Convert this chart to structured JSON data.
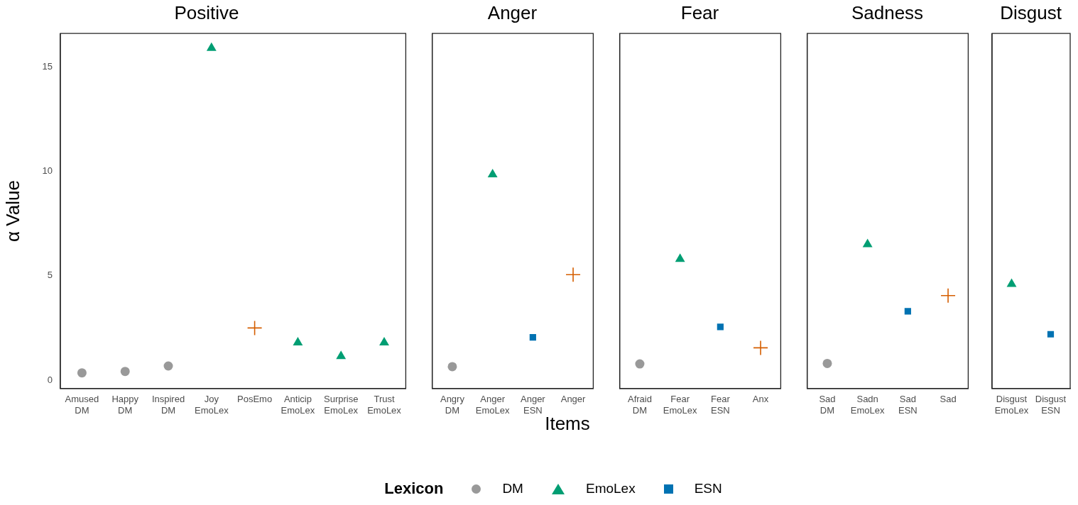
{
  "chart_data": [
    {
      "type": "scatter",
      "title": "Positive",
      "ylabel": "α Value",
      "ylim": [
        -0.4,
        16.6
      ],
      "yticks": [
        0,
        5,
        10,
        15
      ],
      "grid": false,
      "legend": "bottom",
      "legend_title": "Lexicon",
      "categories": [
        "Amused DM",
        "Happy DM",
        "Inspired DM",
        "Joy EmoLex",
        "PosEmo",
        "Anticip EmoLex",
        "Surprise EmoLex",
        "Trust EmoLex"
      ],
      "series": [
        {
          "name": "DM",
          "color": "#999999",
          "marker": "circle",
          "values": [
            0.35,
            0.42,
            0.68,
            null,
            null,
            null,
            null,
            null
          ]
        },
        {
          "name": "EmoLex",
          "color": "#009e73",
          "marker": "triangle",
          "values": [
            null,
            null,
            null,
            15.9,
            null,
            1.8,
            1.15,
            1.8
          ]
        },
        {
          "color": "#d55e00",
          "marker": "cross",
          "values": [
            null,
            null,
            null,
            null,
            2.5,
            null,
            null,
            null
          ]
        }
      ]
    },
    {
      "type": "scatter",
      "title": "Anger",
      "xlabel": "Items",
      "ylim": [
        -0.4,
        16.6
      ],
      "yticks": [
        0,
        5,
        10,
        15
      ],
      "grid": false,
      "tick_labels": "x",
      "categories": [
        "Angry DM",
        "Anger EmoLex",
        "Anger ESN",
        "Anger"
      ],
      "series": [
        {
          "name": "DM",
          "color": "#999999",
          "marker": "circle",
          "values": [
            0.65,
            null,
            null,
            null
          ]
        },
        {
          "name": "EmoLex",
          "color": "#009e73",
          "marker": "triangle",
          "values": [
            null,
            9.85,
            null,
            null
          ]
        },
        {
          "name": "ESN",
          "color": "#0072b2",
          "marker": "square",
          "values": [
            null,
            null,
            2.05,
            null
          ]
        },
        {
          "color": "#d55e00",
          "marker": "cross",
          "values": [
            null,
            null,
            null,
            5.05
          ]
        }
      ]
    },
    {
      "type": "scatter",
      "title": "Fear",
      "ylim": [
        -0.4,
        16.6
      ],
      "yticks": [
        0,
        5,
        10,
        15
      ],
      "grid": false,
      "tick_labels": "x",
      "categories": [
        "Afraid DM",
        "Fear EmoLex",
        "Fear ESN",
        "Anx"
      ],
      "series": [
        {
          "name": "DM",
          "color": "#999999",
          "marker": "circle",
          "values": [
            0.78,
            null,
            null,
            null
          ]
        },
        {
          "name": "EmoLex",
          "color": "#009e73",
          "marker": "triangle",
          "values": [
            null,
            5.8,
            null,
            null
          ]
        },
        {
          "name": "ESN",
          "color": "#0072b2",
          "marker": "square",
          "values": [
            null,
            null,
            2.55,
            null
          ]
        },
        {
          "color": "#d55e00",
          "marker": "cross",
          "values": [
            null,
            null,
            null,
            1.55
          ]
        }
      ]
    },
    {
      "type": "scatter",
      "title": "Sadness",
      "ylim": [
        -0.4,
        16.6
      ],
      "yticks": [
        0,
        5,
        10,
        15
      ],
      "grid": false,
      "tick_labels": "x",
      "categories": [
        "Sad DM",
        "Sadn EmoLex",
        "Sad ESN",
        "Sad"
      ],
      "series": [
        {
          "name": "DM",
          "color": "#999999",
          "marker": "circle",
          "values": [
            0.8,
            null,
            null,
            null
          ]
        },
        {
          "name": "EmoLex",
          "color": "#009e73",
          "marker": "triangle",
          "values": [
            null,
            6.5,
            null,
            null
          ]
        },
        {
          "name": "ESN",
          "color": "#0072b2",
          "marker": "square",
          "values": [
            null,
            null,
            3.3,
            null
          ]
        },
        {
          "color": "#d55e00",
          "marker": "cross",
          "values": [
            null,
            null,
            null,
            4.05
          ]
        }
      ]
    },
    {
      "type": "scatter",
      "title": "Disgust",
      "ylim": [
        -0.4,
        16.6
      ],
      "yticks": [
        0,
        5,
        10,
        15
      ],
      "grid": false,
      "tick_labels": "x",
      "categories": [
        "Disgust EmoLex",
        "Disgust ESN"
      ],
      "series": [
        {
          "name": "EmoLex",
          "color": "#009e73",
          "marker": "triangle",
          "values": [
            4.6,
            null
          ]
        },
        {
          "name": "ESN",
          "color": "#0072b2",
          "marker": "square",
          "values": [
            null,
            2.2
          ]
        }
      ]
    }
  ]
}
